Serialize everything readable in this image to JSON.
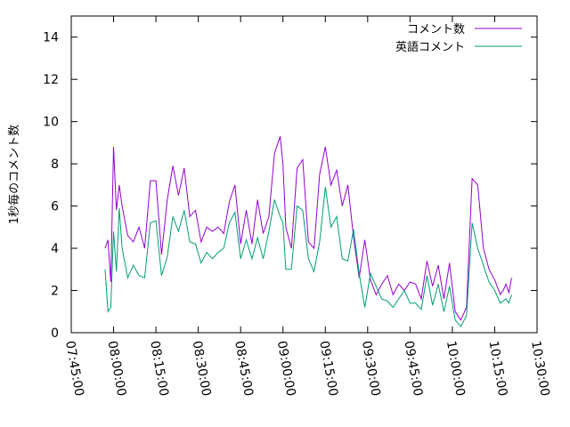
{
  "chart_data": {
    "type": "line",
    "ylabel": "1秒毎のコメント数",
    "xlim": [
      "07:45:00",
      "10:30:00"
    ],
    "ylim": [
      0,
      15
    ],
    "x_ticks": [
      "07:45:00",
      "08:00:00",
      "08:15:00",
      "08:30:00",
      "08:45:00",
      "09:00:00",
      "09:15:00",
      "09:30:00",
      "09:45:00",
      "10:00:00",
      "10:15:00",
      "10:30:00"
    ],
    "y_ticks": [
      0,
      2,
      4,
      6,
      8,
      10,
      12,
      14
    ],
    "legend_position": "top-right",
    "grid": false,
    "x": [
      "07:57:00",
      "07:58:00",
      "07:59:00",
      "08:00:00",
      "08:01:00",
      "08:02:00",
      "08:03:00",
      "08:05:00",
      "08:07:00",
      "08:09:00",
      "08:11:00",
      "08:13:00",
      "08:15:00",
      "08:17:00",
      "08:19:00",
      "08:21:00",
      "08:23:00",
      "08:25:00",
      "08:27:00",
      "08:29:00",
      "08:31:00",
      "08:33:00",
      "08:35:00",
      "08:37:00",
      "08:39:00",
      "08:41:00",
      "08:43:00",
      "08:45:00",
      "08:47:00",
      "08:49:00",
      "08:51:00",
      "08:53:00",
      "08:55:00",
      "08:57:00",
      "08:59:00",
      "09:00:00",
      "09:01:00",
      "09:03:00",
      "09:05:00",
      "09:07:00",
      "09:09:00",
      "09:11:00",
      "09:13:00",
      "09:15:00",
      "09:17:00",
      "09:19:00",
      "09:21:00",
      "09:23:00",
      "09:25:00",
      "09:27:00",
      "09:29:00",
      "09:31:00",
      "09:33:00",
      "09:35:00",
      "09:37:00",
      "09:39:00",
      "09:41:00",
      "09:43:00",
      "09:45:00",
      "09:47:00",
      "09:49:00",
      "09:51:00",
      "09:53:00",
      "09:55:00",
      "09:57:00",
      "09:59:00",
      "10:01:00",
      "10:03:00",
      "10:05:00",
      "10:07:00",
      "10:09:00",
      "10:11:00",
      "10:13:00",
      "10:15:00",
      "10:17:00",
      "10:18:00",
      "10:19:00",
      "10:20:00",
      "10:21:00"
    ],
    "series": [
      {
        "name": "コメント数",
        "color": "#9400d3",
        "values": [
          4.0,
          4.4,
          2.4,
          8.8,
          5.8,
          7.0,
          6.0,
          4.6,
          4.3,
          5.0,
          4.0,
          7.2,
          7.2,
          3.7,
          6.3,
          7.9,
          6.5,
          7.8,
          5.5,
          5.8,
          4.3,
          5.0,
          4.8,
          5.0,
          4.7,
          6.2,
          7.0,
          4.2,
          5.8,
          4.2,
          6.3,
          4.7,
          5.5,
          8.5,
          9.3,
          8.0,
          5.0,
          4.0,
          7.8,
          8.2,
          4.3,
          4.0,
          7.5,
          8.8,
          7.0,
          7.7,
          6.0,
          7.0,
          4.5,
          2.6,
          4.4,
          2.5,
          1.8,
          2.3,
          2.7,
          1.8,
          2.3,
          2.0,
          2.4,
          2.3,
          1.6,
          3.4,
          2.2,
          3.2,
          1.6,
          3.3,
          1.0,
          0.6,
          1.2,
          7.3,
          7.0,
          4.0,
          3.0,
          2.5,
          1.8,
          2.0,
          2.3,
          1.9,
          2.6
        ]
      },
      {
        "name": "英語コメント",
        "color": "#009e73",
        "values": [
          3.0,
          1.0,
          1.2,
          4.8,
          2.9,
          5.9,
          4.0,
          2.6,
          3.2,
          2.7,
          2.6,
          5.2,
          5.3,
          2.7,
          3.6,
          5.5,
          4.8,
          5.8,
          4.3,
          4.2,
          3.3,
          3.8,
          3.5,
          3.8,
          4.0,
          5.2,
          5.7,
          3.5,
          4.4,
          3.5,
          4.5,
          3.5,
          4.8,
          6.3,
          5.5,
          5.2,
          3.0,
          3.0,
          6.0,
          5.8,
          3.5,
          2.9,
          4.3,
          6.9,
          5.0,
          5.5,
          3.5,
          3.4,
          4.9,
          2.8,
          1.2,
          2.8,
          2.2,
          1.6,
          1.5,
          1.2,
          1.6,
          2.0,
          1.4,
          1.4,
          1.1,
          2.7,
          1.3,
          2.3,
          1.0,
          2.2,
          0.6,
          0.3,
          0.8,
          5.2,
          4.0,
          3.2,
          2.4,
          2.0,
          1.4,
          1.5,
          1.6,
          1.4,
          1.8
        ]
      }
    ]
  }
}
